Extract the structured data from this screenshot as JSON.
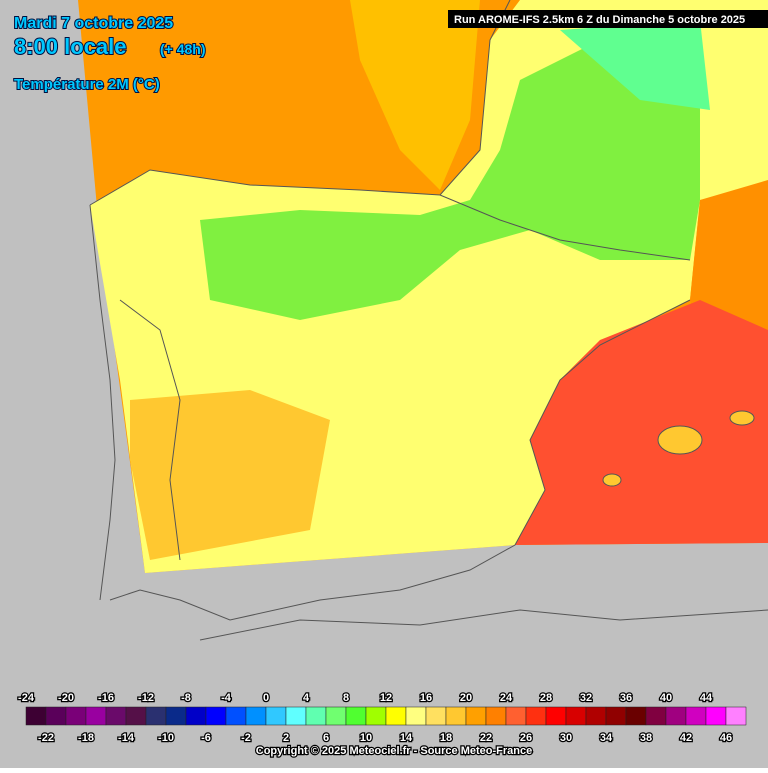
{
  "header": {
    "date": "Mardi 7 octobre 2025",
    "time": "8:00 locale",
    "lead": "(+ 48h)",
    "parameter": "Température 2M (°C)",
    "run": "Run AROME-IFS 2.5km 6 Z du Dimanche 5 octobre 2025"
  },
  "legend": {
    "ticks": [
      -24,
      -22,
      -20,
      -18,
      -16,
      -14,
      -12,
      -10,
      -8,
      -6,
      -4,
      -2,
      0,
      2,
      4,
      6,
      8,
      10,
      12,
      14,
      16,
      18,
      20,
      22,
      24,
      26,
      28,
      30,
      32,
      34,
      36,
      38,
      40,
      42,
      44,
      46
    ],
    "colors": [
      "#3d0033",
      "#5a005a",
      "#7a0078",
      "#9900a0",
      "#6a0a6a",
      "#551048",
      "#2a3070",
      "#0a2a8a",
      "#0000c8",
      "#0000ff",
      "#0050ff",
      "#0090ff",
      "#30c8ff",
      "#60ffff",
      "#60ffb0",
      "#70ff70",
      "#50ff30",
      "#a0ff00",
      "#ffff00",
      "#ffff80",
      "#ffe060",
      "#ffc830",
      "#ffa000",
      "#ff8000",
      "#ff6030",
      "#ff3010",
      "#ff0000",
      "#d80000",
      "#b00000",
      "#900000",
      "#6a0000",
      "#800040",
      "#a00080",
      "#d000c0",
      "#ff00ff",
      "#ff80ff"
    ]
  },
  "footer": {
    "copyright": "Copyright © 2025 Meteociel.fr - Source Meteo-France"
  }
}
